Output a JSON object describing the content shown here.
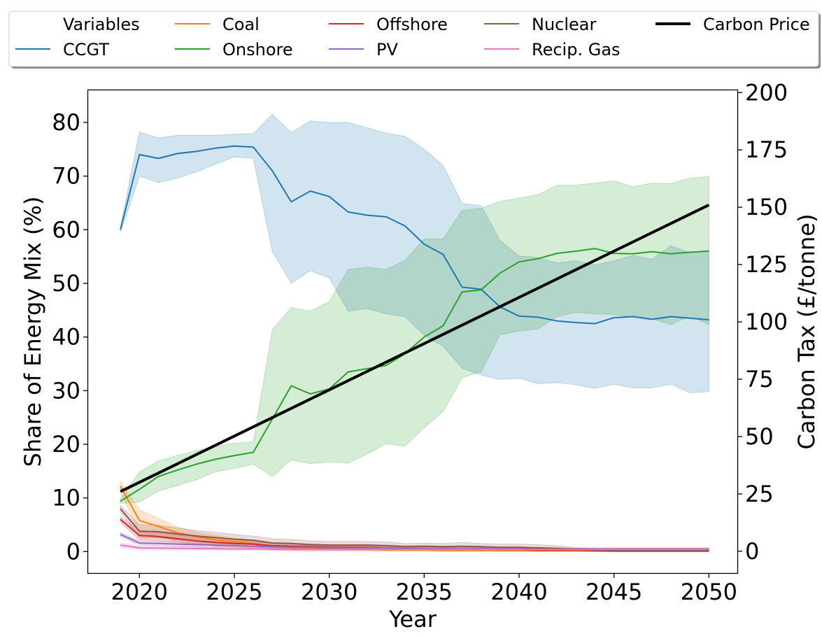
{
  "chart_data": {
    "type": "line",
    "xlabel": "Year",
    "ylabel": "Share of Energy Mix (%)",
    "y2label": "Carbon Tax (£/tonne)",
    "xlim": [
      2017.3,
      2051.5
    ],
    "ylim": [
      -4,
      86
    ],
    "y2lim": [
      -9.5,
      201
    ],
    "xticks": [
      2020,
      2025,
      2030,
      2035,
      2040,
      2045,
      2050
    ],
    "yticks": [
      0,
      10,
      20,
      30,
      40,
      50,
      60,
      70,
      80
    ],
    "y2ticks": [
      0,
      25,
      50,
      75,
      100,
      125,
      150,
      175,
      200
    ],
    "grid": false,
    "legend": {
      "placement": "top, above plot",
      "title": "Variables",
      "entries": [
        "CCGT",
        "Coal",
        "Onshore",
        "Offshore",
        "PV",
        "Nuclear",
        "Recip. Gas",
        "Carbon Price"
      ]
    },
    "x": [
      2019,
      2020,
      2021,
      2022,
      2023,
      2024,
      2025,
      2026,
      2027,
      2028,
      2029,
      2030,
      2031,
      2032,
      2033,
      2034,
      2035,
      2036,
      2037,
      2038,
      2039,
      2040,
      2041,
      2042,
      2043,
      2044,
      2045,
      2046,
      2047,
      2048,
      2049,
      2050
    ],
    "series": [
      {
        "name": "CCGT",
        "color": "#1f77b4",
        "axis": "left",
        "values": [
          60,
          74,
          73.3,
          74.2,
          74.6,
          75.2,
          75.6,
          75.4,
          71,
          65.2,
          67.2,
          66.2,
          63.3,
          62.7,
          62.4,
          60.7,
          57.3,
          55.4,
          49.3,
          48.9,
          45.6,
          43.9,
          43.7,
          43,
          42.7,
          42.5,
          43.6,
          43.8,
          43.3,
          43.8,
          43.5,
          43.2
        ],
        "lower": [
          59.5,
          70,
          68.8,
          69.6,
          70.8,
          72.2,
          73.6,
          73.3,
          56,
          50,
          52.4,
          51,
          44.8,
          45.3,
          44.3,
          43.8,
          40.3,
          38.3,
          34.2,
          32.9,
          32.1,
          32.3,
          31.3,
          31.5,
          31.1,
          30.4,
          31.2,
          30.5,
          30.5,
          31.2,
          29.6,
          29.8
        ],
        "upper": [
          60.5,
          78.2,
          77.1,
          77.6,
          77.6,
          77.6,
          77.8,
          77.9,
          81.5,
          78.1,
          80.3,
          80,
          80,
          79,
          78,
          77.4,
          75,
          72,
          64.9,
          64.5,
          58,
          55.1,
          54.8,
          53.8,
          54.2,
          53.4,
          54.2,
          55.2,
          54.5,
          57,
          55.7,
          56.2
        ]
      },
      {
        "name": "Coal",
        "color": "#ff7f0e",
        "axis": "left",
        "values": [
          12.2,
          5.8,
          4.7,
          3.5,
          2.8,
          2.2,
          1.8,
          1.5,
          1.0,
          0.8,
          0.6,
          0.5,
          0.4,
          0.4,
          0.3,
          0.3,
          0.3,
          0.2,
          0.2,
          0.2,
          0.2,
          0.2,
          0.1,
          0.1,
          0.1,
          0.1,
          0.1,
          0.1,
          0.1,
          0.1,
          0.1,
          0.1
        ],
        "lower": [
          11.2,
          3.5,
          2.8,
          2.0,
          1.5,
          1.0,
          0.8,
          0.6,
          0.3,
          0.2,
          0.1,
          0.1,
          0.1,
          0.1,
          0.0,
          0.0,
          0.0,
          0.0,
          0.0,
          0.0,
          0.0,
          0.0,
          0.0,
          0.0,
          0.0,
          0.0,
          0.0,
          0.0,
          0.0,
          0.0,
          0.0,
          0.0
        ],
        "upper": [
          13.0,
          7.8,
          6.2,
          4.6,
          3.6,
          3.0,
          2.5,
          2.2,
          1.6,
          1.4,
          1.2,
          1.0,
          0.9,
          0.8,
          0.7,
          0.6,
          0.6,
          0.5,
          0.5,
          0.5,
          0.4,
          0.4,
          0.3,
          0.3,
          0.3,
          0.3,
          0.3,
          0.3,
          0.3,
          0.3,
          0.3,
          0.3
        ]
      },
      {
        "name": "Onshore",
        "color": "#2ca02c",
        "axis": "left",
        "values": [
          9.4,
          11.6,
          14,
          15.2,
          16.3,
          17.2,
          17.9,
          18.5,
          24.7,
          30.9,
          29.4,
          30.3,
          33.5,
          34.1,
          34.7,
          36.9,
          40,
          42.1,
          48.4,
          48.8,
          51.9,
          54,
          54.6,
          55.6,
          56,
          56.5,
          55.6,
          55.5,
          55.9,
          55.5,
          55.8,
          56
        ],
        "lower": [
          9,
          9.2,
          11.3,
          12.3,
          13.4,
          14.9,
          15.5,
          16.3,
          14,
          17.1,
          16.4,
          16.7,
          16.5,
          18.2,
          20.1,
          19.7,
          23.1,
          26.1,
          32.4,
          33.5,
          40.4,
          41.1,
          41.5,
          43.8,
          44.6,
          44.3,
          44.2,
          43.7,
          43.4,
          42.3,
          43.9,
          42.3
        ],
        "upper": [
          9.8,
          14.8,
          16.9,
          17.9,
          18.8,
          19.6,
          20.2,
          20.5,
          41.3,
          45.5,
          44.8,
          46.6,
          52.6,
          53,
          52.6,
          54.3,
          58.3,
          58.3,
          63.6,
          64,
          65.3,
          65.9,
          66.5,
          68.3,
          68.3,
          68.7,
          69.1,
          68,
          68.7,
          68.6,
          69.6,
          69.9
        ]
      },
      {
        "name": "Offshore",
        "color": "#d62728",
        "axis": "left",
        "values": [
          6.0,
          3.0,
          2.8,
          2.4,
          2.0,
          1.7,
          1.5,
          1.4,
          1.1,
          1.0,
          0.9,
          0.8,
          0.8,
          0.8,
          0.7,
          0.6,
          0.6,
          0.5,
          0.5,
          0.5,
          0.4,
          0.4,
          0.3,
          0.3,
          0.3,
          0.2,
          0.1,
          0.1,
          0.1,
          0.1,
          0.1,
          0.1
        ],
        "lower": [
          5.5,
          2.2,
          2.0,
          1.7,
          1.4,
          1.1,
          1.0,
          0.9,
          0.6,
          0.5,
          0.4,
          0.3,
          0.3,
          0.3,
          0.3,
          0.2,
          0.2,
          0.2,
          0.2,
          0.2,
          0.1,
          0.1,
          0.1,
          0.1,
          0.1,
          0.0,
          0.0,
          0.0,
          0.0,
          0.0,
          0.0,
          0.0
        ],
        "upper": [
          6.5,
          3.9,
          3.6,
          3.1,
          2.6,
          2.3,
          2.0,
          1.9,
          1.6,
          1.5,
          1.4,
          1.3,
          1.3,
          1.3,
          1.2,
          1.1,
          1.1,
          1.0,
          1.0,
          1.0,
          0.8,
          0.8,
          0.7,
          0.6,
          0.5,
          0.4,
          0.3,
          0.3,
          0.3,
          0.3,
          0.3,
          0.3
        ]
      },
      {
        "name": "PV",
        "color": "#9467bd",
        "axis": "left",
        "values": [
          3.2,
          1.6,
          1.5,
          1.4,
          1.3,
          1.2,
          1.1,
          1.0,
          0.9,
          0.8,
          0.8,
          0.7,
          0.7,
          0.7,
          0.7,
          0.6,
          0.6,
          0.6,
          0.6,
          0.6,
          0.5,
          0.5,
          0.5,
          0.5,
          0.5,
          0.5,
          0.5,
          0.5,
          0.5,
          0.5,
          0.5,
          0.5
        ],
        "lower": [
          2.8,
          1.2,
          1.1,
          1.0,
          0.9,
          0.8,
          0.8,
          0.7,
          0.6,
          0.5,
          0.5,
          0.4,
          0.4,
          0.4,
          0.4,
          0.3,
          0.3,
          0.3,
          0.3,
          0.3,
          0.3,
          0.3,
          0.3,
          0.3,
          0.3,
          0.3,
          0.3,
          0.3,
          0.3,
          0.3,
          0.3,
          0.3
        ],
        "upper": [
          3.6,
          2.0,
          1.9,
          1.8,
          1.7,
          1.6,
          1.5,
          1.4,
          1.2,
          1.1,
          1.1,
          1.0,
          1.0,
          1.0,
          1.0,
          0.9,
          0.9,
          0.9,
          0.9,
          0.9,
          0.8,
          0.8,
          0.7,
          0.7,
          0.7,
          0.7,
          0.7,
          0.7,
          0.7,
          0.7,
          0.7,
          0.7
        ]
      },
      {
        "name": "Nuclear",
        "color": "#8c564b",
        "axis": "left",
        "values": [
          8.0,
          3.8,
          3.7,
          3.3,
          2.9,
          2.6,
          2.3,
          2.1,
          1.6,
          1.5,
          1.3,
          1.2,
          1.2,
          1.2,
          1.1,
          0.9,
          1.0,
          0.9,
          1.0,
          0.9,
          0.8,
          0.8,
          0.7,
          0.6,
          0.4,
          0.3,
          0.2,
          0.2,
          0.2,
          0.2,
          0.2,
          0.2
        ],
        "lower": [
          7.4,
          2.6,
          2.5,
          2.2,
          1.9,
          1.6,
          1.4,
          1.3,
          0.8,
          0.7,
          0.6,
          0.5,
          0.5,
          0.5,
          0.4,
          0.3,
          0.4,
          0.3,
          0.3,
          0.3,
          0.2,
          0.2,
          0.2,
          0.1,
          0.1,
          0.0,
          0.0,
          0.0,
          0.0,
          0.0,
          0.0,
          0.0
        ],
        "upper": [
          8.6,
          5.0,
          4.9,
          4.4,
          3.9,
          3.6,
          3.2,
          2.9,
          2.4,
          2.3,
          2.0,
          1.9,
          1.9,
          1.9,
          1.8,
          1.5,
          1.6,
          1.5,
          1.7,
          1.5,
          1.4,
          1.4,
          1.3,
          1.1,
          0.7,
          0.6,
          0.4,
          0.4,
          0.4,
          0.4,
          0.4,
          0.4
        ]
      },
      {
        "name": "Recip. Gas",
        "color": "#e377c2",
        "axis": "left",
        "values": [
          1.2,
          0.7,
          0.65,
          0.6,
          0.6,
          0.55,
          0.5,
          0.5,
          0.45,
          0.4,
          0.4,
          0.4,
          0.4,
          0.4,
          0.4,
          0.4,
          0.4,
          0.4,
          0.4,
          0.4,
          0.4,
          0.4,
          0.4,
          0.4,
          0.4,
          0.4,
          0.4,
          0.4,
          0.4,
          0.4,
          0.4,
          0.4
        ],
        "lower": [
          0.8,
          0.4,
          0.35,
          0.3,
          0.3,
          0.3,
          0.25,
          0.25,
          0.2,
          0.2,
          0.2,
          0.2,
          0.2,
          0.2,
          0.2,
          0.2,
          0.2,
          0.2,
          0.2,
          0.2,
          0.2,
          0.2,
          0.2,
          0.2,
          0.2,
          0.2,
          0.2,
          0.2,
          0.2,
          0.2,
          0.2,
          0.2
        ],
        "upper": [
          1.6,
          1.0,
          0.95,
          0.9,
          0.9,
          0.85,
          0.8,
          0.8,
          0.7,
          0.6,
          0.6,
          0.6,
          0.6,
          0.6,
          0.6,
          0.6,
          0.6,
          0.6,
          0.6,
          0.6,
          0.6,
          0.6,
          0.6,
          0.6,
          0.6,
          0.6,
          0.6,
          0.6,
          0.6,
          0.6,
          0.6,
          0.6
        ]
      },
      {
        "name": "Carbon Price",
        "color": "#000000",
        "axis": "right",
        "x": [
          2019,
          2050
        ],
        "values": [
          26,
          151
        ]
      }
    ]
  }
}
